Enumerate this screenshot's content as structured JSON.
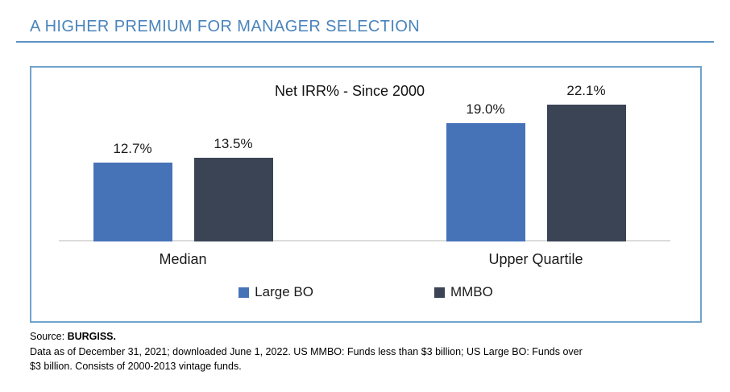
{
  "header": {
    "title": "A HIGHER PREMIUM FOR MANAGER SELECTION"
  },
  "chart_data": {
    "type": "bar",
    "title": "Net IRR% - Since 2000",
    "categories": [
      "Median",
      "Upper Quartile"
    ],
    "series": [
      {
        "name": "Large BO",
        "color": "#4673B8",
        "values": [
          12.7,
          19.0
        ],
        "labels": [
          "12.7%",
          "19.0%"
        ]
      },
      {
        "name": "MMBO",
        "color": "#3B4455",
        "values": [
          13.5,
          22.1
        ],
        "labels": [
          "13.5%",
          "22.1%"
        ]
      }
    ],
    "ylim": [
      0,
      28
    ],
    "grid": false,
    "axis_labels_shown": false,
    "legend_position": "bottom"
  },
  "footnote": {
    "source_prefix": "Source: ",
    "source_name": "BURGISS.",
    "line2": "Data as of December 31, 2021; downloaded June 1, 2022. US MMBO: Funds less than $3 billion; US Large BO: Funds over",
    "line3": "$3 billion. Consists of 2000-2013 vintage funds."
  },
  "colors": {
    "heading_blue": "#4A84BC",
    "rule_blue": "#5E93C5",
    "panel_border_blue": "#71A3CB",
    "axis_gray": "#DCDCDC",
    "bar_large_bo": "#4673B8",
    "bar_mmbo": "#3B4455",
    "text_black": "#1A1A1A"
  }
}
